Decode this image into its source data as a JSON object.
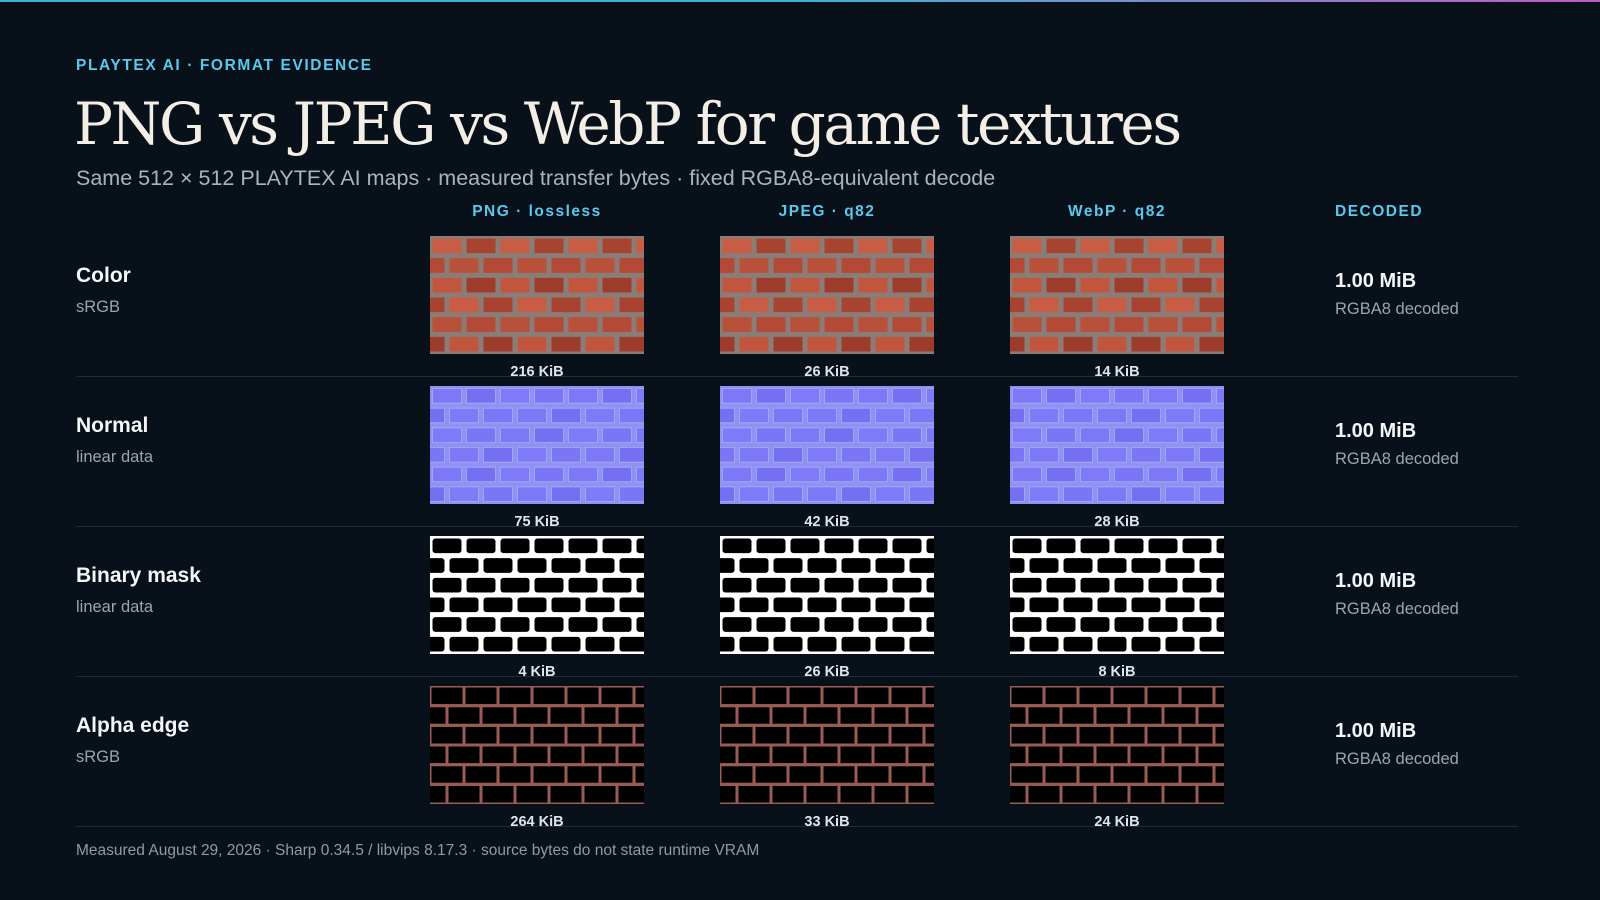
{
  "header": {
    "eyebrow": "PLAYTEX AI · FORMAT EVIDENCE",
    "title": "PNG vs JPEG vs WebP for game textures",
    "subtitle": "Same 512 × 512 PLAYTEX AI maps · measured transfer bytes · fixed RGBA8-equivalent decode"
  },
  "columns": [
    "PNG · lossless",
    "JPEG · q82",
    "WebP · q82",
    "DECODED"
  ],
  "rows": [
    {
      "label": "Color",
      "space": "sRGB",
      "texture": "color-brick-icon",
      "sizes": [
        "216 KiB",
        "26 KiB",
        "14 KiB"
      ],
      "decoded": "1.00 MiB",
      "decoded_note": "RGBA8 decoded"
    },
    {
      "label": "Normal",
      "space": "linear data",
      "texture": "normal-map-icon",
      "sizes": [
        "75 KiB",
        "42 KiB",
        "28 KiB"
      ],
      "decoded": "1.00 MiB",
      "decoded_note": "RGBA8 decoded"
    },
    {
      "label": "Binary mask",
      "space": "linear data",
      "texture": "binary-mask-icon",
      "sizes": [
        "4 KiB",
        "26 KiB",
        "8 KiB"
      ],
      "decoded": "1.00 MiB",
      "decoded_note": "RGBA8 decoded"
    },
    {
      "label": "Alpha edge",
      "space": "sRGB",
      "texture": "alpha-edge-icon",
      "sizes": [
        "264 KiB",
        "33 KiB",
        "24 KiB"
      ],
      "decoded": "1.00 MiB",
      "decoded_note": "RGBA8 decoded"
    }
  ],
  "footer": "Measured August 29, 2026 · Sharp 0.34.5 / libvips 8.17.3 · source bytes do not state runtime VRAM"
}
